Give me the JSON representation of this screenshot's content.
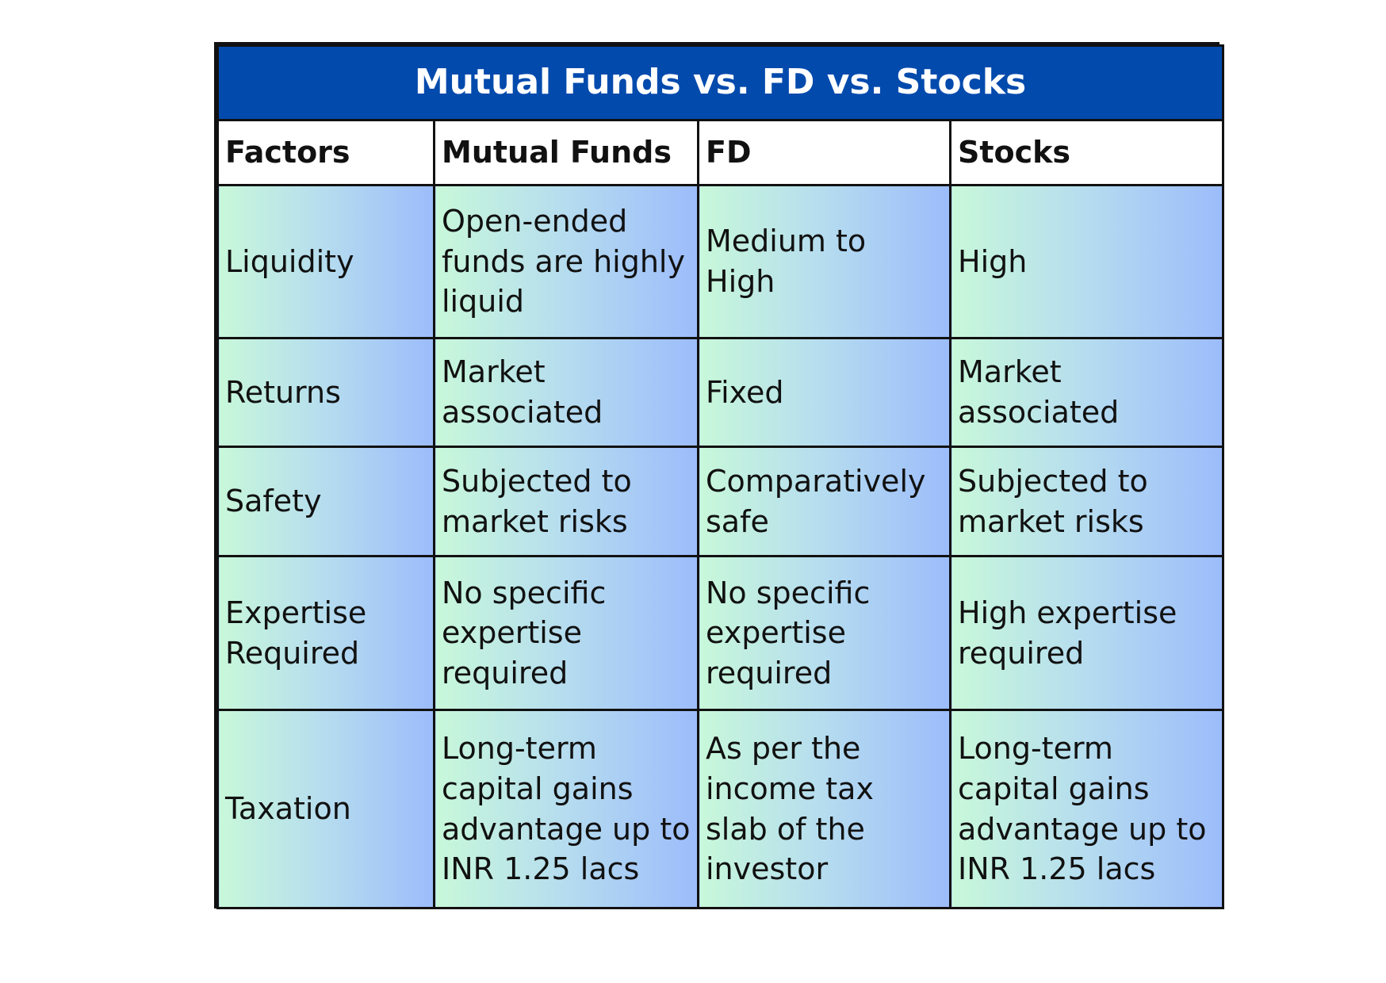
{
  "title": "Mutual Funds vs. FD vs. Stocks",
  "headers": [
    "Factors",
    "Mutual Funds",
    "FD",
    "Stocks"
  ],
  "rows": [
    {
      "factor": "Liquidity",
      "mutual_funds": "Open-ended funds are highly liquid",
      "fd": "Medium to High",
      "stocks": "High"
    },
    {
      "factor": "Returns",
      "mutual_funds": "Market associated",
      "fd": "Fixed",
      "stocks": "Market associated"
    },
    {
      "factor": "Safety",
      "mutual_funds": "Subjected to market risks",
      "fd": "Comparatively safe",
      "stocks": "Subjected to market risks"
    },
    {
      "factor": "Expertise Required",
      "mutual_funds": "No specific expertise required",
      "fd": "No specific expertise required",
      "stocks": "High expertise required"
    },
    {
      "factor": "Taxation",
      "mutual_funds": "Long-term capital gains advantage up to INR 1.25 lacs",
      "fd": "As per the income tax slab of the investor",
      "stocks": "Long-term capital gains advantage up to INR 1.25 lacs"
    }
  ],
  "colors": {
    "title_background": "#034aad",
    "title_text": "#ffffff",
    "border": "#111111",
    "gradient_start": "#c8f8da",
    "gradient_end": "#9cbcfb"
  }
}
